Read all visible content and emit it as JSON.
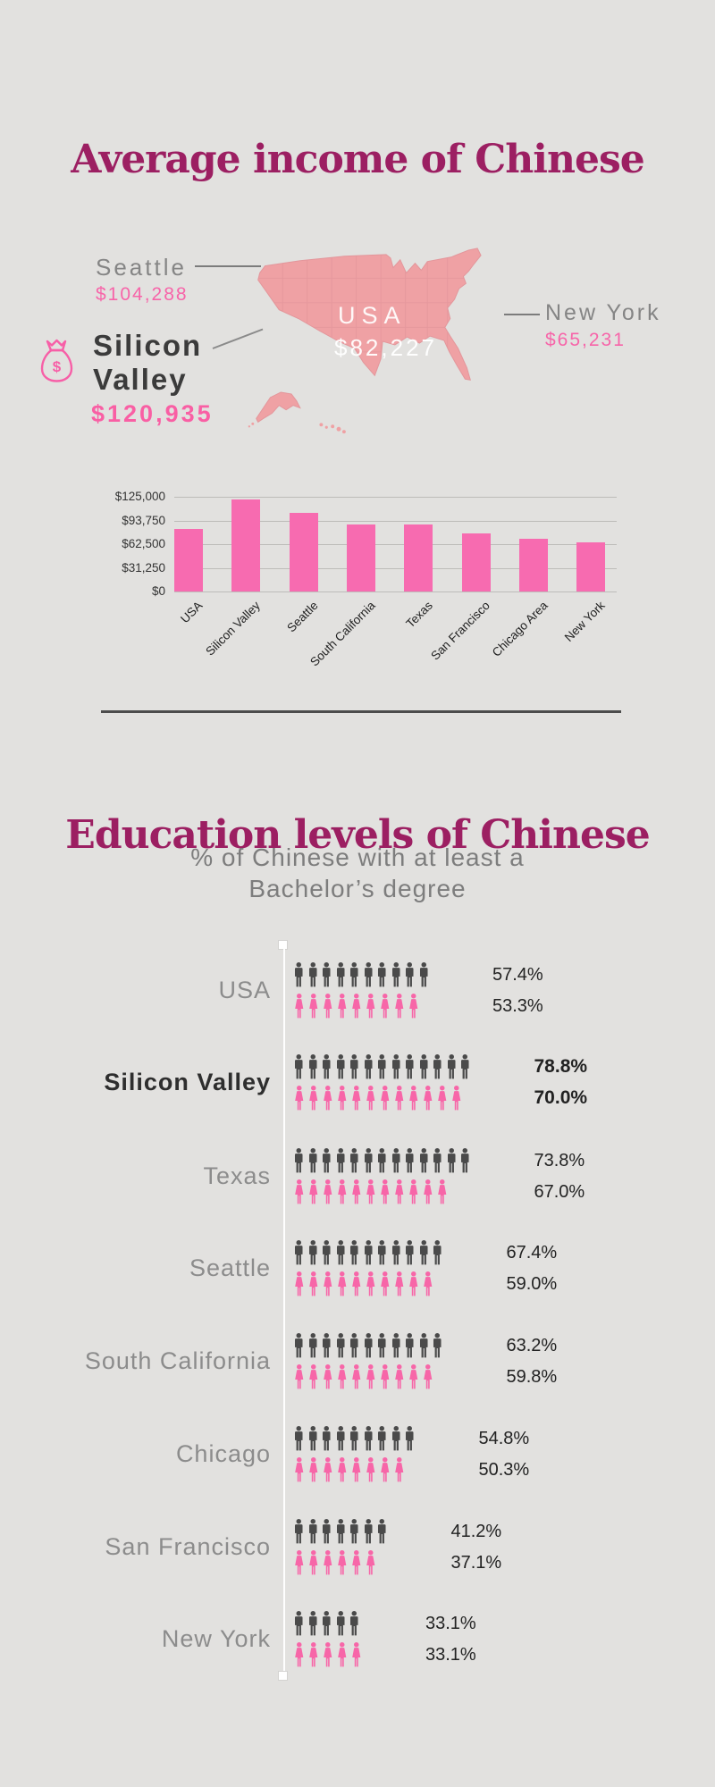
{
  "colors": {
    "background": "#e2e1df",
    "heading_magenta": "#9c1f62",
    "accent_pink": "#f765a9",
    "bar_pink": "#f76bb0",
    "map_fill": "#efa1a4",
    "map_border": "#e3969b",
    "male_icon_gray": "#4a4a4a",
    "female_icon_pink": "#f766a8",
    "label_gray": "#8c8c8c"
  },
  "income": {
    "title": "Average income of Chinese",
    "callouts": {
      "seattle": {
        "label": "Seattle",
        "value": "$104,288"
      },
      "silicon_valley": {
        "label_line1": "Silicon",
        "label_line2": "Valley",
        "value": "$120,935"
      },
      "usa": {
        "label": "USA",
        "value": "$82,227"
      },
      "new_york": {
        "label": "New York",
        "value": "$65,231"
      }
    }
  },
  "education": {
    "title": "Education levels of Chinese",
    "subtitle": [
      "% of Chinese with at least a",
      "Bachelor’s degree"
    ]
  },
  "chart_data": [
    {
      "type": "bar",
      "title": "Average income of Chinese",
      "categories": [
        "USA",
        "Silicon Valley",
        "Seattle",
        "South California",
        "Texas",
        "San Francisco",
        "Chicago Area",
        "New York"
      ],
      "values": [
        82227,
        120935,
        104288,
        89000,
        88000,
        77000,
        69000,
        65231
      ],
      "labeled_values": {
        "USA": 82227,
        "Silicon Valley": 120935,
        "Seattle": 104288,
        "New York": 65231
      },
      "estimation_note": "South California, Texas, San Francisco and Chicago Area values estimated from bar heights",
      "xlabel": "",
      "ylabel": "",
      "ylim": [
        0,
        125000
      ],
      "yticks": [
        0,
        31250,
        62500,
        93750,
        125000
      ],
      "ytick_labels": [
        "$0",
        "$31,250",
        "$62,500",
        "$93,750",
        "$125,000"
      ],
      "grid": true,
      "legend": "none",
      "bar_color": "#f76bb0"
    },
    {
      "type": "bar",
      "variant": "pictograph",
      "title": "Education levels of Chinese",
      "subtitle": "% of Chinese with at least a Bachelor’s degree",
      "categories": [
        "USA",
        "Silicon Valley",
        "Texas",
        "Seattle",
        "South California",
        "Chicago",
        "San Francisco",
        "New York"
      ],
      "series": [
        {
          "name": "male",
          "color": "#4a4a4a",
          "values": [
            57.4,
            78.8,
            73.8,
            67.4,
            63.2,
            54.8,
            41.2,
            33.1
          ],
          "icon_counts": [
            10,
            13,
            13,
            11,
            11,
            9,
            7,
            5
          ]
        },
        {
          "name": "female",
          "color": "#f766a8",
          "values": [
            53.3,
            70.0,
            67.0,
            59.0,
            59.8,
            50.3,
            37.1,
            33.1
          ],
          "icon_counts": [
            9,
            12,
            11,
            10,
            10,
            8,
            6,
            5
          ]
        }
      ],
      "emphasized_category": "Silicon Valley",
      "xlim": [
        0,
        100
      ],
      "grid": false,
      "legend": "none"
    }
  ]
}
